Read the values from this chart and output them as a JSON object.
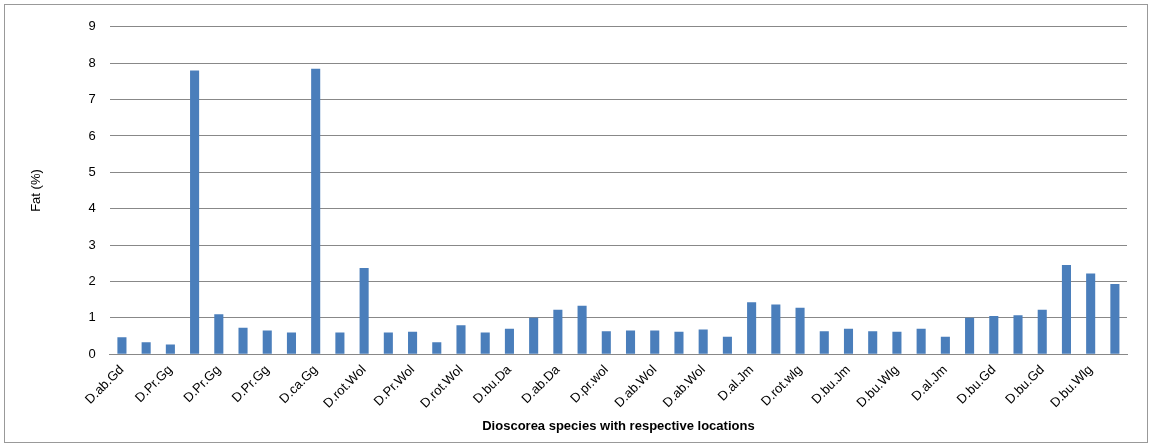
{
  "chart_data": {
    "type": "bar",
    "xlabel": "Dioscorea species with respective locations",
    "ylabel": "Fat (%)",
    "categories": [
      "D.ab.Gd",
      null,
      "D.Pr.Gg",
      null,
      "D.Pr.Gg",
      null,
      "D.Pr.Gg",
      null,
      "D.ca.Gg",
      null,
      "D.rot.Wol",
      null,
      "D.Pr.Wol",
      null,
      "D.rot.Wol",
      null,
      "D.bu.Da",
      null,
      "D.ab.Da",
      null,
      "D.pr.wol",
      null,
      "D.ab.Wol",
      null,
      "D.ab.Wol",
      null,
      "D.al.Jm",
      null,
      "D.rot.wlg",
      null,
      "D.bu.Jm",
      null,
      "D.bu.Wlg",
      null,
      "D.al.Jm",
      null,
      "D.bu.Gd",
      null,
      "D.bu.Gd",
      null,
      "D.bu.Wlg",
      null
    ],
    "values": [
      0.47,
      0.33,
      0.27,
      7.8,
      1.1,
      0.73,
      0.65,
      0.6,
      7.85,
      0.6,
      2.37,
      0.6,
      0.62,
      0.33,
      0.8,
      0.6,
      0.7,
      1.0,
      1.22,
      1.33,
      0.63,
      0.65,
      0.65,
      0.62,
      0.68,
      0.48,
      1.43,
      1.37,
      1.28,
      0.63,
      0.7,
      0.63,
      0.62,
      0.7,
      0.48,
      1.0,
      1.05,
      1.07,
      1.22,
      2.45,
      2.22,
      1.93
    ],
    "color": "#4a7ebb",
    "ylim": [
      0,
      9
    ],
    "yticks": [
      0,
      1,
      2,
      3,
      4,
      5,
      6,
      7,
      8,
      9
    ],
    "grid": "y"
  }
}
